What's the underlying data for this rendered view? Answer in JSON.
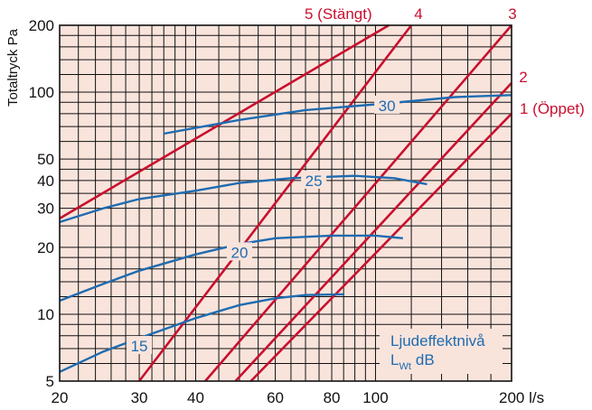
{
  "chart_data": {
    "type": "line",
    "xscale": "log",
    "yscale": "log",
    "xlim": [
      20,
      200
    ],
    "ylim": [
      5,
      200
    ],
    "xticks": [
      20,
      30,
      40,
      60,
      80,
      100,
      200
    ],
    "xtick_labels": [
      "20",
      "30",
      "40",
      "60",
      "80",
      "100",
      "200 l/s"
    ],
    "yticks": [
      5,
      10,
      20,
      30,
      40,
      50,
      100,
      200
    ],
    "ytick_labels": [
      "5",
      "10",
      "20",
      "30",
      "40",
      "50",
      "100",
      "200"
    ],
    "ylabel": "Totaltryck Pa",
    "grid": true,
    "colors": {
      "background": "#f9e4dc",
      "grid": "#111111",
      "damper": "#c8102e",
      "sound": "#1f6bb0"
    },
    "damper_series": [
      {
        "name": "5 (Stängt)",
        "points": [
          [
            20,
            27
          ],
          [
            107,
            200
          ]
        ]
      },
      {
        "name": "4",
        "points": [
          [
            30,
            5
          ],
          [
            120,
            200
          ]
        ]
      },
      {
        "name": "3",
        "points": [
          [
            42,
            5
          ],
          [
            200,
            200
          ]
        ]
      },
      {
        "name": "2",
        "points": [
          [
            49,
            5
          ],
          [
            200,
            110
          ]
        ]
      },
      {
        "name": "1 (Öppet)",
        "points": [
          [
            53,
            5
          ],
          [
            200,
            80
          ]
        ]
      }
    ],
    "sound_series": [
      {
        "name": "30",
        "label_at": [
          106,
          87
        ],
        "points": [
          [
            34,
            65
          ],
          [
            50,
            75
          ],
          [
            70,
            83
          ],
          [
            106,
            89
          ],
          [
            150,
            95
          ],
          [
            200,
            97
          ]
        ]
      },
      {
        "name": "25",
        "label_at": [
          73,
          40
        ],
        "points": [
          [
            20,
            26
          ],
          [
            25,
            30
          ],
          [
            30,
            33
          ],
          [
            40,
            36
          ],
          [
            50,
            39
          ],
          [
            65,
            41
          ],
          [
            90,
            42
          ],
          [
            110,
            41
          ],
          [
            130,
            38.5
          ]
        ]
      },
      {
        "name": "20",
        "label_at": [
          50,
          19
        ],
        "points": [
          [
            20,
            11.5
          ],
          [
            25,
            13.7
          ],
          [
            30,
            15.7
          ],
          [
            40,
            18.6
          ],
          [
            50,
            20.7
          ],
          [
            60,
            22
          ],
          [
            80,
            22.6
          ],
          [
            100,
            22.6
          ],
          [
            115,
            22
          ]
        ]
      },
      {
        "name": "15",
        "label_at": [
          30,
          7.2
        ],
        "points": [
          [
            20,
            5.5
          ],
          [
            25,
            6.8
          ],
          [
            30,
            7.8
          ],
          [
            40,
            9.6
          ],
          [
            50,
            11
          ],
          [
            60,
            11.8
          ],
          [
            70,
            12.2
          ],
          [
            85,
            12.3
          ]
        ]
      }
    ],
    "annotation": {
      "line1": "Ljudeffektnivå",
      "line2_main": "L",
      "line2_sub": "Wt",
      "line2_unit": "dB"
    }
  }
}
